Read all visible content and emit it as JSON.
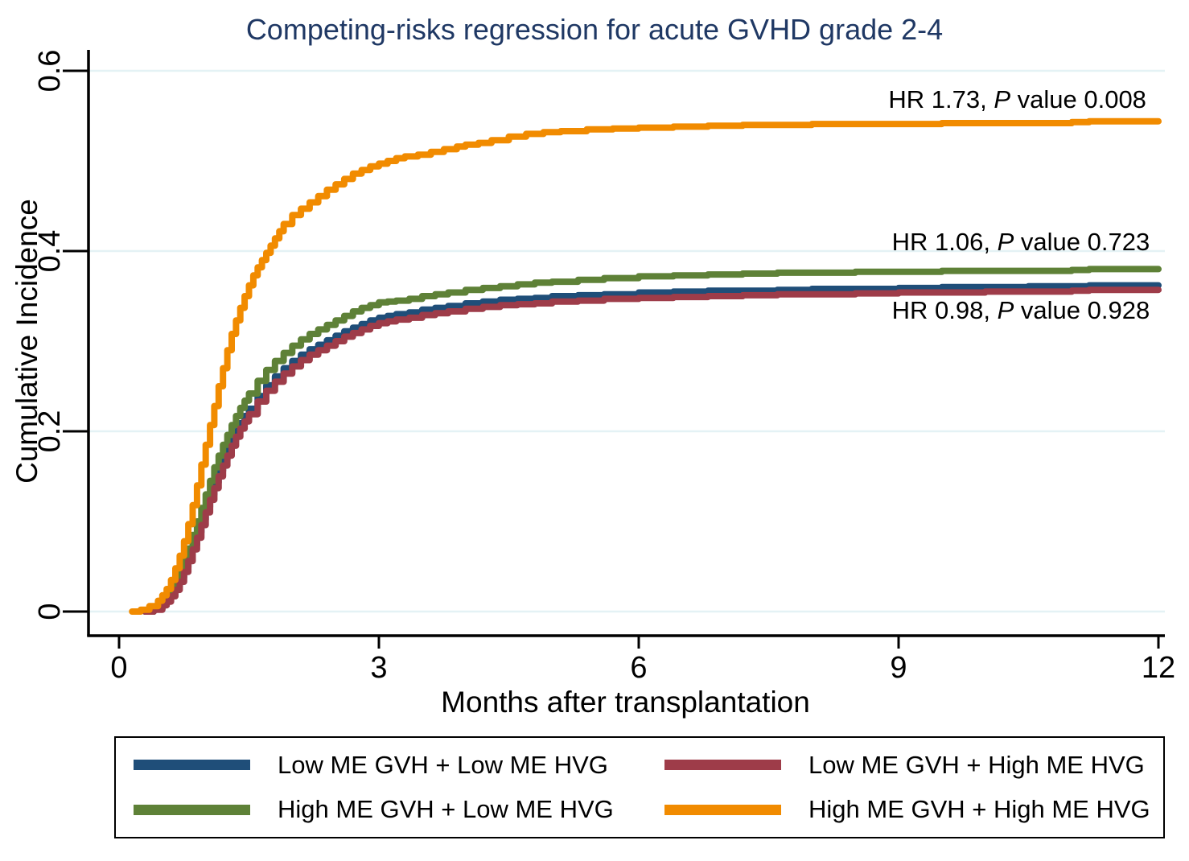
{
  "title": "Competing-risks regression for acute GVHD grade 2-4",
  "colors": {
    "title_text": "#1F3864",
    "axis": "#000000",
    "gridline": "#E4F2F5",
    "background": "#FFFFFF",
    "navy": "#1F4E79",
    "maroon": "#9E3C49",
    "green": "#5E8137",
    "orange": "#F18B00"
  },
  "chart_data": {
    "type": "line",
    "title": "Competing-risks regression for acute GVHD grade 2-4",
    "xlabel": "Months after transplantation",
    "ylabel": "Cumulative Incidence",
    "xlim": [
      0,
      12
    ],
    "ylim": [
      0,
      0.6
    ],
    "xticks": [
      {
        "v": 0,
        "label": "0"
      },
      {
        "v": 3,
        "label": "3"
      },
      {
        "v": 6,
        "label": "6"
      },
      {
        "v": 9,
        "label": "9"
      },
      {
        "v": 12,
        "label": "12"
      }
    ],
    "yticks": [
      {
        "v": 0,
        "label": "0"
      },
      {
        "v": 0.2,
        "label": "0.2"
      },
      {
        "v": 0.4,
        "label": "0.4"
      },
      {
        "v": 0.6,
        "label": "0.6"
      }
    ],
    "grid": "horizontal",
    "legend_position": "bottom-box",
    "interpolation": "step-after",
    "draw_order": [
      0,
      2,
      1,
      3
    ],
    "annotations": [
      {
        "pre": "HR 1.73, ",
        "italic": "P",
        "post": " value 0.008",
        "x": 11.86,
        "y": 0.568
      },
      {
        "pre": "HR 1.06, ",
        "italic": "P",
        "post": " value 0.723",
        "x": 11.9,
        "y": 0.41
      },
      {
        "pre": "HR 0.98, ",
        "italic": "P",
        "post": " value 0.928",
        "x": 11.9,
        "y": 0.334
      }
    ],
    "series": [
      {
        "name": "Low ME GVH + Low ME HVG",
        "color": "#1F4E79",
        "points": [
          [
            0.3,
            0
          ],
          [
            0.4,
            0.003
          ],
          [
            0.5,
            0.008
          ],
          [
            0.55,
            0.013
          ],
          [
            0.6,
            0.02
          ],
          [
            0.65,
            0.028
          ],
          [
            0.7,
            0.038
          ],
          [
            0.75,
            0.049
          ],
          [
            0.8,
            0.061
          ],
          [
            0.85,
            0.074
          ],
          [
            0.9,
            0.088
          ],
          [
            0.95,
            0.102
          ],
          [
            1.0,
            0.116
          ],
          [
            1.05,
            0.13
          ],
          [
            1.1,
            0.143
          ],
          [
            1.15,
            0.156
          ],
          [
            1.2,
            0.168
          ],
          [
            1.25,
            0.179
          ],
          [
            1.3,
            0.19
          ],
          [
            1.35,
            0.2
          ],
          [
            1.4,
            0.209
          ],
          [
            1.45,
            0.217
          ],
          [
            1.5,
            0.225
          ],
          [
            1.6,
            0.239
          ],
          [
            1.7,
            0.251
          ],
          [
            1.8,
            0.261
          ],
          [
            1.9,
            0.27
          ],
          [
            2.0,
            0.278
          ],
          [
            2.1,
            0.285
          ],
          [
            2.2,
            0.291
          ],
          [
            2.3,
            0.296
          ],
          [
            2.4,
            0.301
          ],
          [
            2.5,
            0.306
          ],
          [
            2.6,
            0.311
          ],
          [
            2.7,
            0.315
          ],
          [
            2.8,
            0.319
          ],
          [
            2.9,
            0.323
          ],
          [
            3.0,
            0.326
          ],
          [
            3.1,
            0.328
          ],
          [
            3.2,
            0.33
          ],
          [
            3.35,
            0.332
          ],
          [
            3.5,
            0.335
          ],
          [
            3.65,
            0.337
          ],
          [
            3.8,
            0.339
          ],
          [
            4.0,
            0.342
          ],
          [
            4.2,
            0.344
          ],
          [
            4.4,
            0.346
          ],
          [
            4.6,
            0.347
          ],
          [
            4.8,
            0.348
          ],
          [
            5.0,
            0.35
          ],
          [
            5.3,
            0.351
          ],
          [
            5.6,
            0.352
          ],
          [
            6.0,
            0.354
          ],
          [
            6.4,
            0.355
          ],
          [
            6.8,
            0.356
          ],
          [
            7.2,
            0.356
          ],
          [
            7.6,
            0.357
          ],
          [
            8.0,
            0.358
          ],
          [
            8.5,
            0.358
          ],
          [
            9.0,
            0.359
          ],
          [
            9.5,
            0.36
          ],
          [
            10.0,
            0.36
          ],
          [
            10.5,
            0.361
          ],
          [
            11.0,
            0.361
          ],
          [
            11.2,
            0.362
          ],
          [
            12.0,
            0.362
          ]
        ]
      },
      {
        "name": "Low ME GVH + High ME HVG",
        "color": "#9E3C49",
        "points": [
          [
            0.3,
            0
          ],
          [
            0.4,
            0.002
          ],
          [
            0.5,
            0.007
          ],
          [
            0.55,
            0.011
          ],
          [
            0.6,
            0.017
          ],
          [
            0.65,
            0.024
          ],
          [
            0.7,
            0.033
          ],
          [
            0.75,
            0.044
          ],
          [
            0.8,
            0.056
          ],
          [
            0.85,
            0.069
          ],
          [
            0.9,
            0.082
          ],
          [
            0.95,
            0.096
          ],
          [
            1.0,
            0.11
          ],
          [
            1.05,
            0.124
          ],
          [
            1.1,
            0.137
          ],
          [
            1.15,
            0.15
          ],
          [
            1.2,
            0.162
          ],
          [
            1.25,
            0.173
          ],
          [
            1.3,
            0.184
          ],
          [
            1.35,
            0.194
          ],
          [
            1.4,
            0.203
          ],
          [
            1.45,
            0.211
          ],
          [
            1.5,
            0.219
          ],
          [
            1.6,
            0.233
          ],
          [
            1.7,
            0.245
          ],
          [
            1.8,
            0.255
          ],
          [
            1.9,
            0.264
          ],
          [
            2.0,
            0.272
          ],
          [
            2.1,
            0.279
          ],
          [
            2.2,
            0.285
          ],
          [
            2.3,
            0.29
          ],
          [
            2.4,
            0.295
          ],
          [
            2.5,
            0.3
          ],
          [
            2.6,
            0.305
          ],
          [
            2.7,
            0.309
          ],
          [
            2.8,
            0.313
          ],
          [
            2.9,
            0.317
          ],
          [
            3.0,
            0.32
          ],
          [
            3.1,
            0.322
          ],
          [
            3.2,
            0.324
          ],
          [
            3.35,
            0.326
          ],
          [
            3.5,
            0.329
          ],
          [
            3.65,
            0.331
          ],
          [
            3.8,
            0.333
          ],
          [
            4.0,
            0.336
          ],
          [
            4.2,
            0.338
          ],
          [
            4.4,
            0.34
          ],
          [
            4.6,
            0.341
          ],
          [
            4.8,
            0.342
          ],
          [
            5.0,
            0.344
          ],
          [
            5.3,
            0.345
          ],
          [
            5.6,
            0.347
          ],
          [
            6.0,
            0.348
          ],
          [
            6.4,
            0.349
          ],
          [
            6.8,
            0.35
          ],
          [
            7.2,
            0.351
          ],
          [
            7.6,
            0.352
          ],
          [
            8.0,
            0.352
          ],
          [
            8.5,
            0.353
          ],
          [
            9.0,
            0.354
          ],
          [
            9.5,
            0.354
          ],
          [
            10.0,
            0.355
          ],
          [
            10.5,
            0.355
          ],
          [
            11.0,
            0.356
          ],
          [
            11.2,
            0.357
          ],
          [
            12.0,
            0.357
          ]
        ]
      },
      {
        "name": "High ME GVH + Low ME HVG",
        "color": "#5E8137",
        "points": [
          [
            0.3,
            0
          ],
          [
            0.4,
            0.004
          ],
          [
            0.5,
            0.01
          ],
          [
            0.55,
            0.016
          ],
          [
            0.6,
            0.024
          ],
          [
            0.65,
            0.033
          ],
          [
            0.7,
            0.044
          ],
          [
            0.75,
            0.056
          ],
          [
            0.8,
            0.07
          ],
          [
            0.85,
            0.085
          ],
          [
            0.9,
            0.1
          ],
          [
            0.95,
            0.115
          ],
          [
            1.0,
            0.13
          ],
          [
            1.05,
            0.145
          ],
          [
            1.1,
            0.16
          ],
          [
            1.15,
            0.173
          ],
          [
            1.2,
            0.185
          ],
          [
            1.25,
            0.196
          ],
          [
            1.3,
            0.207
          ],
          [
            1.35,
            0.217
          ],
          [
            1.4,
            0.226
          ],
          [
            1.45,
            0.234
          ],
          [
            1.5,
            0.242
          ],
          [
            1.6,
            0.256
          ],
          [
            1.7,
            0.268
          ],
          [
            1.8,
            0.278
          ],
          [
            1.9,
            0.287
          ],
          [
            2.0,
            0.295
          ],
          [
            2.1,
            0.302
          ],
          [
            2.2,
            0.308
          ],
          [
            2.3,
            0.313
          ],
          [
            2.4,
            0.318
          ],
          [
            2.5,
            0.323
          ],
          [
            2.6,
            0.328
          ],
          [
            2.7,
            0.333
          ],
          [
            2.8,
            0.337
          ],
          [
            2.9,
            0.34
          ],
          [
            3.0,
            0.343
          ],
          [
            3.1,
            0.344
          ],
          [
            3.2,
            0.345
          ],
          [
            3.35,
            0.347
          ],
          [
            3.5,
            0.35
          ],
          [
            3.65,
            0.352
          ],
          [
            3.8,
            0.354
          ],
          [
            4.0,
            0.357
          ],
          [
            4.2,
            0.359
          ],
          [
            4.4,
            0.361
          ],
          [
            4.6,
            0.363
          ],
          [
            4.8,
            0.365
          ],
          [
            5.0,
            0.366
          ],
          [
            5.3,
            0.368
          ],
          [
            5.6,
            0.37
          ],
          [
            6.0,
            0.372
          ],
          [
            6.4,
            0.373
          ],
          [
            6.8,
            0.374
          ],
          [
            7.2,
            0.375
          ],
          [
            7.6,
            0.376
          ],
          [
            8.0,
            0.376
          ],
          [
            8.5,
            0.377
          ],
          [
            9.0,
            0.377
          ],
          [
            9.5,
            0.378
          ],
          [
            10.0,
            0.378
          ],
          [
            10.5,
            0.378
          ],
          [
            11.0,
            0.379
          ],
          [
            11.2,
            0.38
          ],
          [
            12.0,
            0.38
          ]
        ]
      },
      {
        "name": "High ME GVH + High ME HVG",
        "color": "#F18B00",
        "points": [
          [
            0.15,
            0
          ],
          [
            0.25,
            0.002
          ],
          [
            0.35,
            0.006
          ],
          [
            0.45,
            0.012
          ],
          [
            0.5,
            0.018
          ],
          [
            0.55,
            0.025
          ],
          [
            0.6,
            0.035
          ],
          [
            0.65,
            0.048
          ],
          [
            0.7,
            0.062
          ],
          [
            0.75,
            0.078
          ],
          [
            0.8,
            0.097
          ],
          [
            0.85,
            0.118
          ],
          [
            0.9,
            0.14
          ],
          [
            0.95,
            0.163
          ],
          [
            1.0,
            0.185
          ],
          [
            1.05,
            0.207
          ],
          [
            1.1,
            0.228
          ],
          [
            1.15,
            0.25
          ],
          [
            1.2,
            0.27
          ],
          [
            1.25,
            0.29
          ],
          [
            1.3,
            0.308
          ],
          [
            1.35,
            0.323
          ],
          [
            1.4,
            0.337
          ],
          [
            1.45,
            0.35
          ],
          [
            1.5,
            0.362
          ],
          [
            1.55,
            0.373
          ],
          [
            1.6,
            0.382
          ],
          [
            1.65,
            0.39
          ],
          [
            1.7,
            0.398
          ],
          [
            1.75,
            0.406
          ],
          [
            1.8,
            0.414
          ],
          [
            1.85,
            0.422
          ],
          [
            1.9,
            0.43
          ],
          [
            2.0,
            0.44
          ],
          [
            2.1,
            0.447
          ],
          [
            2.2,
            0.454
          ],
          [
            2.3,
            0.461
          ],
          [
            2.4,
            0.468
          ],
          [
            2.5,
            0.474
          ],
          [
            2.6,
            0.48
          ],
          [
            2.7,
            0.486
          ],
          [
            2.8,
            0.49
          ],
          [
            2.9,
            0.494
          ],
          [
            3.0,
            0.497
          ],
          [
            3.1,
            0.5
          ],
          [
            3.2,
            0.503
          ],
          [
            3.3,
            0.505
          ],
          [
            3.45,
            0.507
          ],
          [
            3.6,
            0.51
          ],
          [
            3.75,
            0.513
          ],
          [
            3.9,
            0.516
          ],
          [
            4.0,
            0.518
          ],
          [
            4.15,
            0.52
          ],
          [
            4.3,
            0.523
          ],
          [
            4.5,
            0.527
          ],
          [
            4.7,
            0.53
          ],
          [
            4.9,
            0.532
          ],
          [
            5.1,
            0.533
          ],
          [
            5.4,
            0.535
          ],
          [
            5.7,
            0.536
          ],
          [
            6.0,
            0.537
          ],
          [
            6.4,
            0.538
          ],
          [
            6.8,
            0.539
          ],
          [
            7.2,
            0.54
          ],
          [
            7.6,
            0.54
          ],
          [
            8.0,
            0.541
          ],
          [
            8.5,
            0.541
          ],
          [
            9.0,
            0.541
          ],
          [
            9.5,
            0.542
          ],
          [
            10.0,
            0.542
          ],
          [
            10.5,
            0.542
          ],
          [
            11.0,
            0.543
          ],
          [
            11.2,
            0.544
          ],
          [
            12.0,
            0.544
          ]
        ]
      }
    ]
  }
}
